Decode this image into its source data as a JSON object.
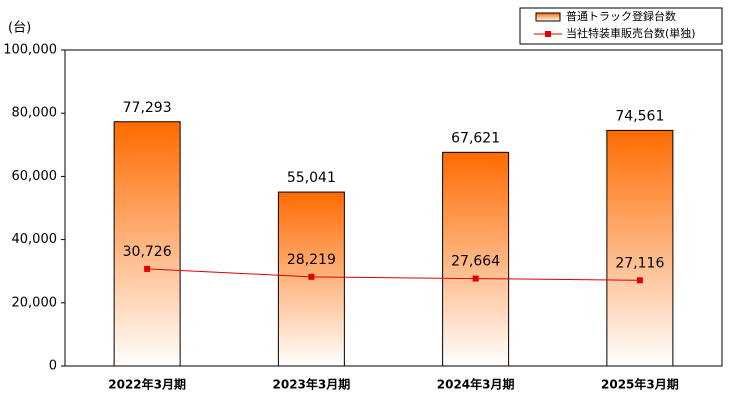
{
  "chart_data": {
    "type": "bar",
    "y_unit_label": "(台)",
    "categories": [
      "2022年3月期",
      "2023年3月期",
      "2024年3月期",
      "2025年3月期"
    ],
    "series": [
      {
        "name": "普通トラック登録台数",
        "type": "bar",
        "color": "#ff6a00",
        "values": [
          77293,
          55041,
          67621,
          74561
        ],
        "value_labels": [
          "77,293",
          "55,041",
          "67,621",
          "74,561"
        ]
      },
      {
        "name": "当社特装車販売台数(単独)",
        "type": "line",
        "color": "#e00000",
        "values": [
          30726,
          28219,
          27664,
          27116
        ],
        "value_labels": [
          "30,726",
          "28,219",
          "27,664",
          "27,116"
        ]
      }
    ],
    "ylim": [
      0,
      100000
    ],
    "yticks": [
      0,
      {
        "value": 20000,
        "label": "20,000"
      },
      {
        "value": 40000,
        "label": "40,000"
      },
      {
        "value": 60000,
        "label": "60,000"
      },
      {
        "value": 80000,
        "label": "80,000"
      },
      {
        "value": 100000,
        "label": "100,000"
      }
    ],
    "grid": false,
    "legend": "top-right"
  }
}
